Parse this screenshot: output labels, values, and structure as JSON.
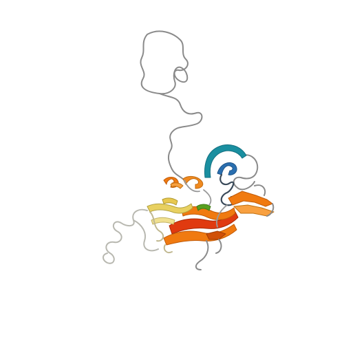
{
  "image": {
    "subject": "protein-ribbon-cartoon",
    "background_color": "#ffffff"
  },
  "palette": {
    "coil": "#8a8a8a",
    "coil_light": "#b8b8b0",
    "helix_teal": "#1a8fa0",
    "helix_blue": "#2a6fb0",
    "sheet_orange": "#f07a10",
    "sheet_red": "#e03a10",
    "sheet_yellow": "#e8d060",
    "sheet_green": "#58a020",
    "sheet_light_orange": "#f8a040"
  }
}
